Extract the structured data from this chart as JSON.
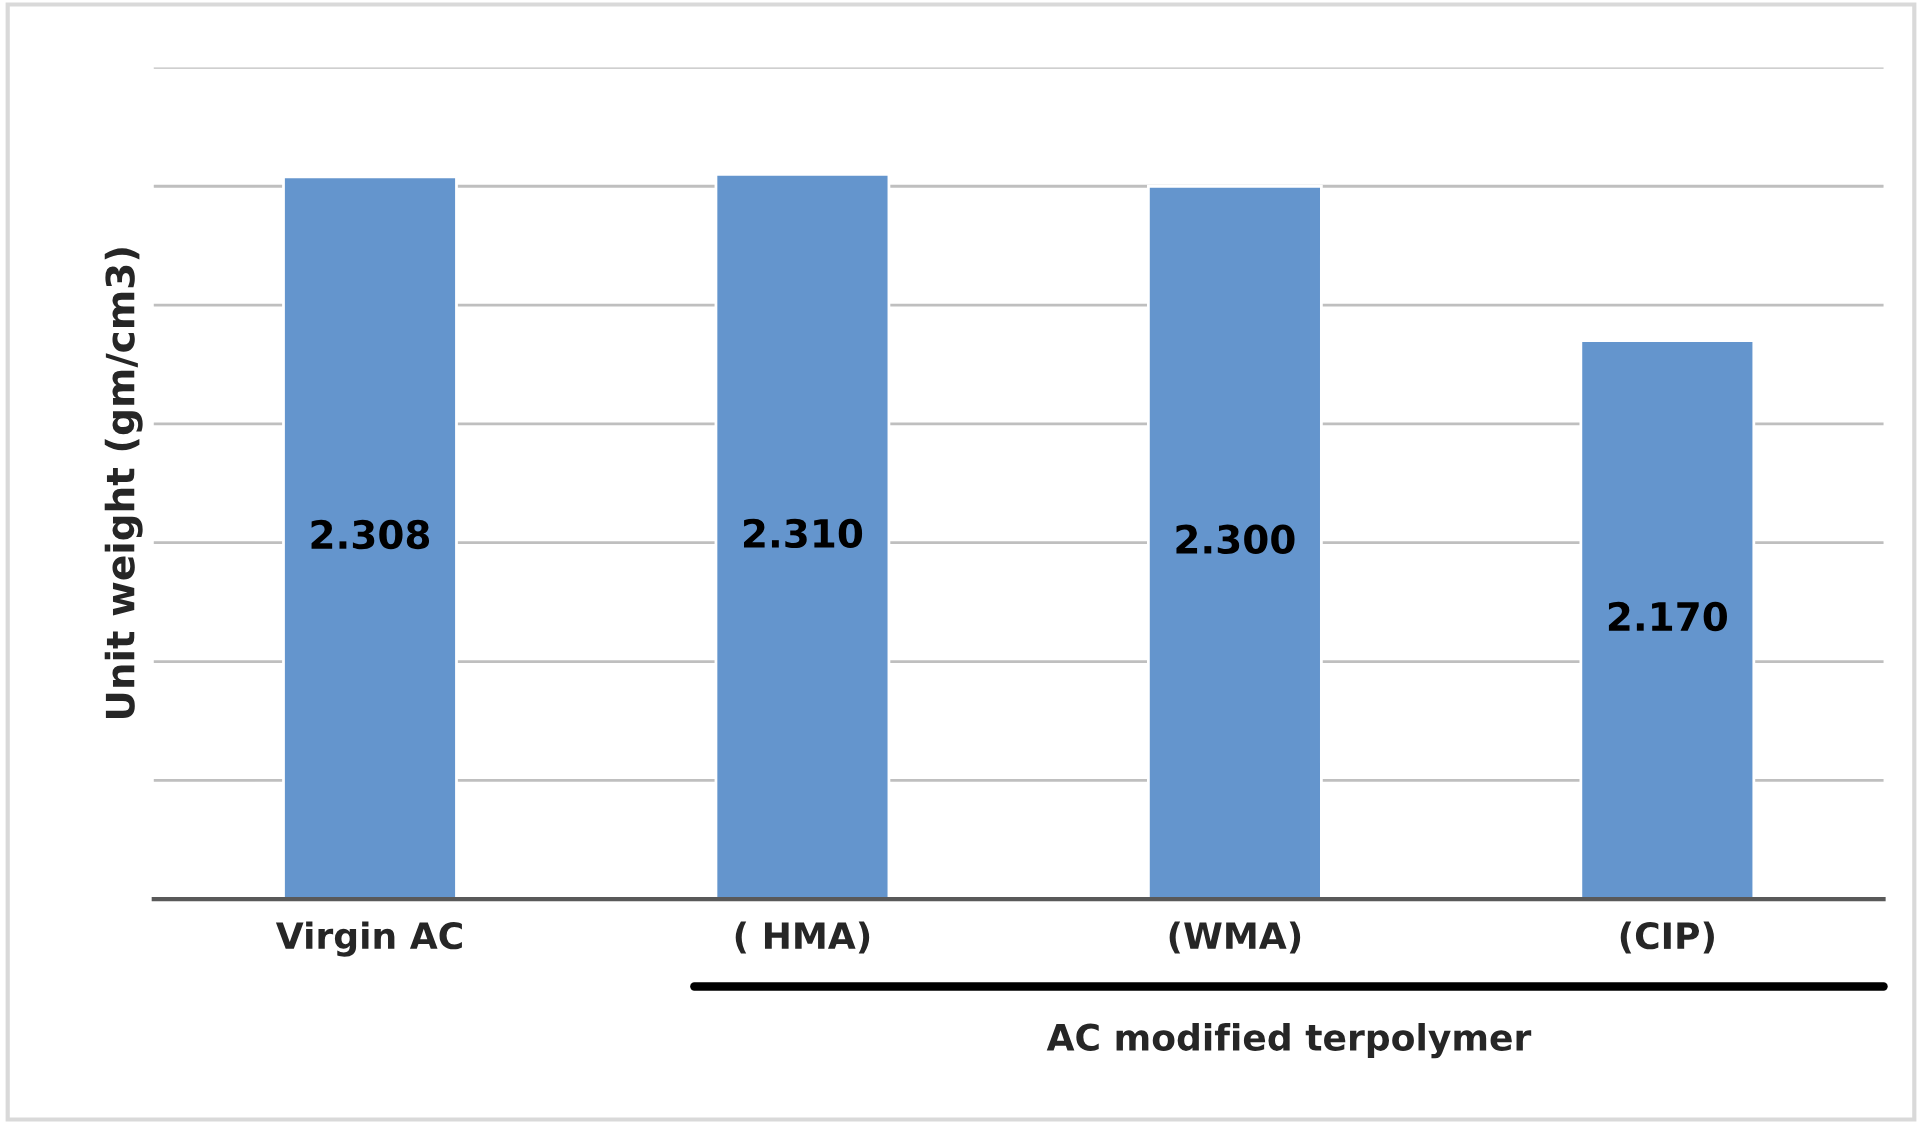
{
  "chart_data": {
    "type": "bar",
    "ylabel": "Unit weight (gm/cm3)",
    "categories": [
      "Virgin AC",
      "( HMA)",
      "(WMA)",
      "(CIP)"
    ],
    "values": [
      2.308,
      2.31,
      2.3,
      2.17
    ],
    "value_labels": [
      "2.308",
      "2.310",
      "2.300",
      "2.170"
    ],
    "color": "#6495cd",
    "ylim": [
      1.7,
      2.4
    ],
    "tick_labels": "x",
    "grid": "y",
    "annotations": [
      "AC modified terpolymer"
    ]
  }
}
